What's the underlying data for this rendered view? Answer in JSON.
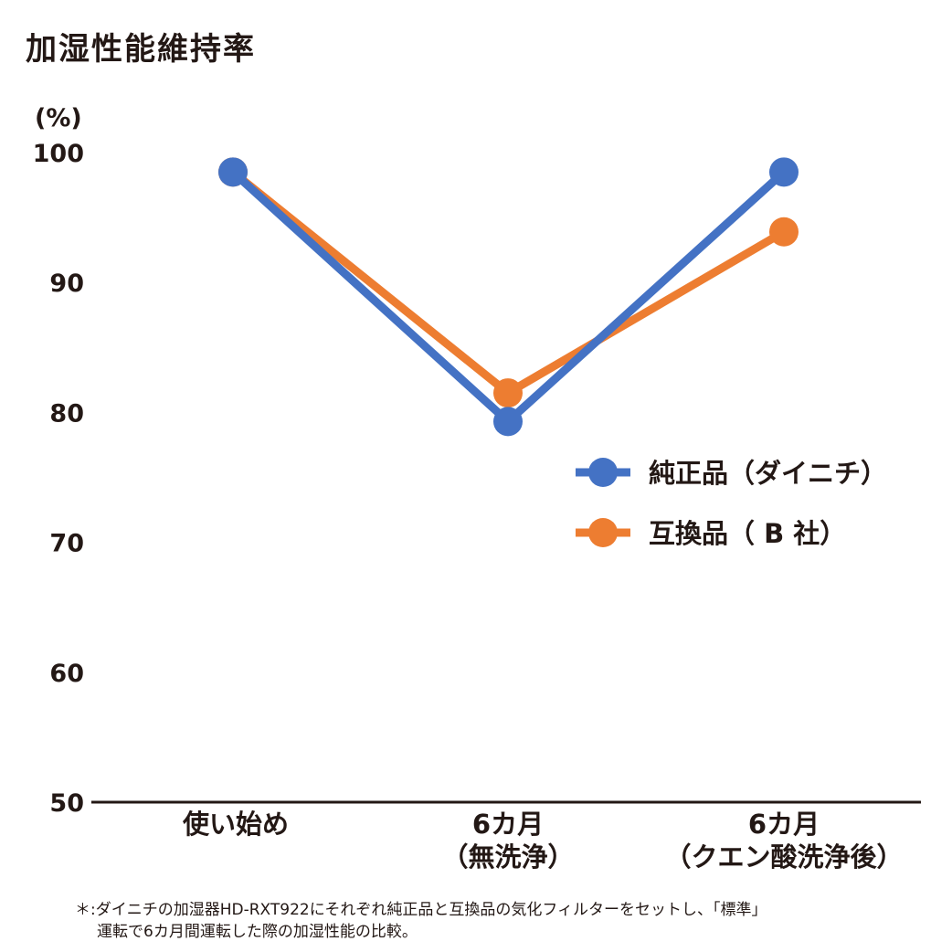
{
  "chart_data": {
    "type": "line",
    "title": "加湿性能維持率",
    "ylabel": "(%)",
    "xlabel": "",
    "ylim": [
      50,
      100
    ],
    "yticks": [
      "100",
      "90",
      "80",
      "70",
      "60",
      "50"
    ],
    "categories": [
      [
        "使い始め"
      ],
      [
        "6カ月",
        "（無洗浄）"
      ],
      [
        "6カ月",
        "（クエン酸洗浄後）"
      ]
    ],
    "series": [
      {
        "name": "純正品（ダイニチ）",
        "color": "#4472c4",
        "values": [
          98.5,
          79.3,
          98.5
        ]
      },
      {
        "name": "互換品（ B 社）",
        "color": "#ed7d31",
        "values": [
          98.5,
          81.5,
          93.9
        ]
      }
    ],
    "grid": false,
    "legend": "right",
    "footnote": [
      "＊:ダイニチの加湿器HD-RXT922にそれぞれ純正品と互換品の気化フィルターをセットし、「標準」",
      "運転で6カ月間運転した際の加湿性能の比較。"
    ]
  }
}
